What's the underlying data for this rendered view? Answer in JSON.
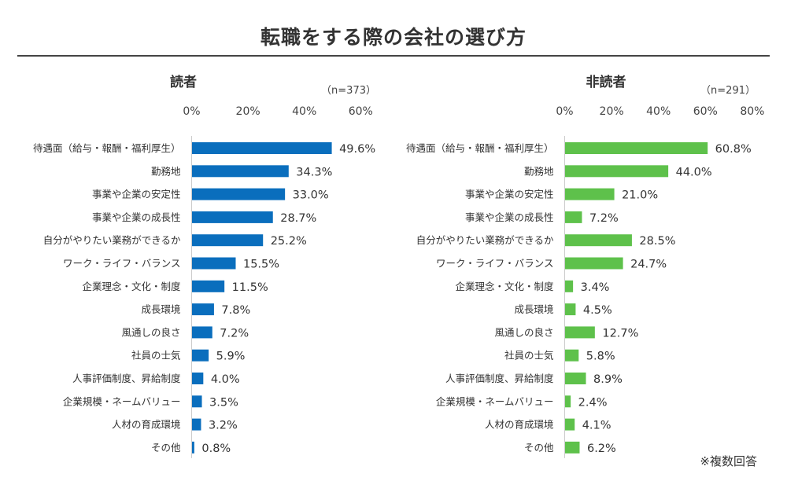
{
  "title": "転職をする際の会社の選び方",
  "footnote": "※複数回答",
  "chart_data": [
    {
      "type": "bar",
      "orientation": "horizontal",
      "title": "読者",
      "sample": "（n=373）",
      "xlim": [
        0,
        60
      ],
      "ticks": [
        "0%",
        "20%",
        "40%",
        "60%"
      ],
      "color": "#0a6ebd",
      "categories": [
        "待遇面（給与・報酬・福利厚生）",
        "勤務地",
        "事業や企業の安定性",
        "事業や企業の成長性",
        "自分がやりたい業務ができるか",
        "ワーク・ライフ・バランス",
        "企業理念・文化・制度",
        "成長環境",
        "風通しの良さ",
        "社員の士気",
        "人事評価制度、昇給制度",
        "企業規模・ネームバリュー",
        "人材の育成環境",
        "その他"
      ],
      "values": [
        49.6,
        34.3,
        33.0,
        28.7,
        25.2,
        15.5,
        11.5,
        7.8,
        7.2,
        5.9,
        4.0,
        3.5,
        3.2,
        0.8
      ],
      "labels": [
        "49.6%",
        "34.3%",
        "33.0%",
        "28.7%",
        "25.2%",
        "15.5%",
        "11.5%",
        "7.8%",
        "7.2%",
        "5.9%",
        "4.0%",
        "3.5%",
        "3.2%",
        "0.8%"
      ]
    },
    {
      "type": "bar",
      "orientation": "horizontal",
      "title": "非読者",
      "sample": "（n=291）",
      "xlim": [
        0,
        80
      ],
      "ticks": [
        "0%",
        "20%",
        "40%",
        "60%",
        "80%"
      ],
      "color": "#5ec14b",
      "categories": [
        "待遇面（給与・報酬・福利厚生）",
        "勤務地",
        "事業や企業の安定性",
        "事業や企業の成長性",
        "自分がやりたい業務ができるか",
        "ワーク・ライフ・バランス",
        "企業理念・文化・制度",
        "成長環境",
        "風通しの良さ",
        "社員の士気",
        "人事評価制度、昇給制度",
        "企業規模・ネームバリュー",
        "人材の育成環境",
        "その他"
      ],
      "values": [
        60.8,
        44.0,
        21.0,
        7.2,
        28.5,
        24.7,
        3.4,
        4.5,
        12.7,
        5.8,
        8.9,
        2.4,
        4.1,
        6.2
      ],
      "labels": [
        "60.8%",
        "44.0%",
        "21.0%",
        "7.2%",
        "28.5%",
        "24.7%",
        "3.4%",
        "4.5%",
        "12.7%",
        "5.8%",
        "8.9%",
        "2.4%",
        "4.1%",
        "6.2%"
      ]
    }
  ]
}
